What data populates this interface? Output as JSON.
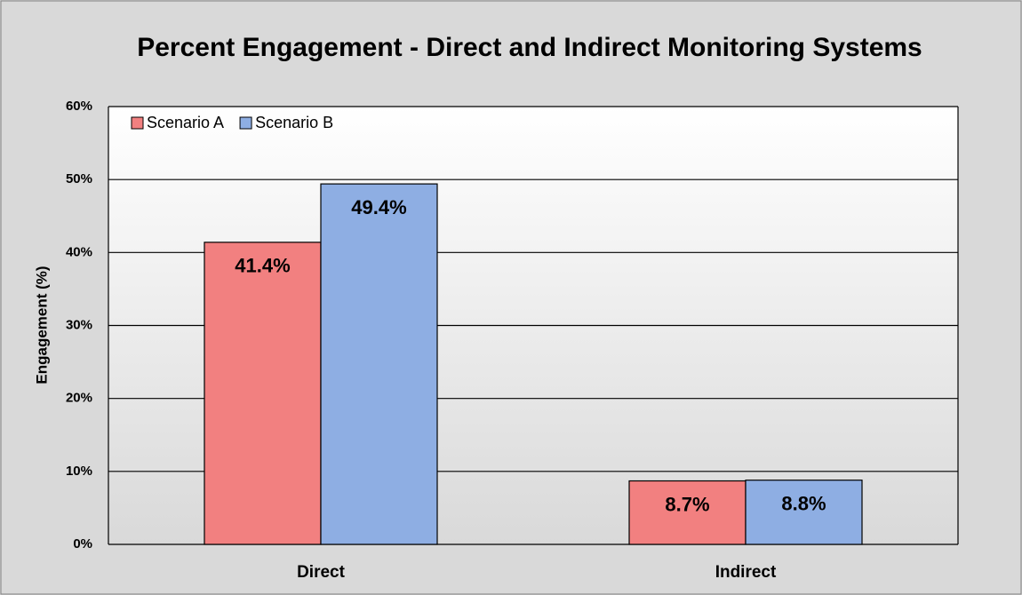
{
  "chart_data": {
    "type": "bar",
    "title": "Percent Engagement - Direct and Indirect Monitoring Systems",
    "ylabel": "Engagement (%)",
    "categories": [
      "Direct",
      "Indirect"
    ],
    "series": [
      {
        "name": "Scenario A",
        "color": "#f28080",
        "values": [
          41.4,
          8.7
        ],
        "value_labels": [
          "41.4%",
          "8.7%"
        ]
      },
      {
        "name": "Scenario B",
        "color": "#8eaee3",
        "values": [
          49.4,
          8.8
        ],
        "value_labels": [
          "49.4%",
          "8.8%"
        ]
      }
    ],
    "ylim": [
      0,
      60
    ],
    "yticks": [
      {
        "value": 0,
        "label": "0%"
      },
      {
        "value": 10,
        "label": "10%"
      },
      {
        "value": 20,
        "label": "20%"
      },
      {
        "value": 30,
        "label": "30%"
      },
      {
        "value": 40,
        "label": "40%"
      },
      {
        "value": 50,
        "label": "50%"
      },
      {
        "value": 60,
        "label": "60%"
      }
    ],
    "grid": true,
    "legend": "upper left"
  }
}
